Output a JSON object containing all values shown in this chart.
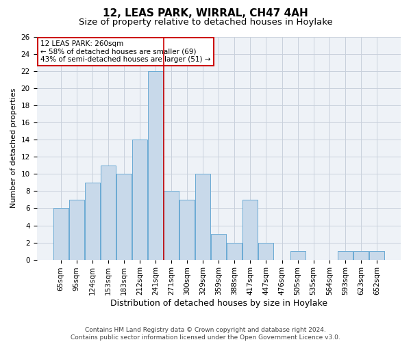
{
  "title": "12, LEAS PARK, WIRRAL, CH47 4AH",
  "subtitle": "Size of property relative to detached houses in Hoylake",
  "xlabel": "Distribution of detached houses by size in Hoylake",
  "ylabel": "Number of detached properties",
  "categories": [
    "65sqm",
    "95sqm",
    "124sqm",
    "153sqm",
    "183sqm",
    "212sqm",
    "241sqm",
    "271sqm",
    "300sqm",
    "329sqm",
    "359sqm",
    "388sqm",
    "417sqm",
    "447sqm",
    "476sqm",
    "505sqm",
    "535sqm",
    "564sqm",
    "593sqm",
    "623sqm",
    "652sqm"
  ],
  "values": [
    6,
    7,
    9,
    11,
    10,
    14,
    22,
    8,
    7,
    10,
    3,
    2,
    7,
    2,
    0,
    1,
    0,
    0,
    1,
    1,
    1
  ],
  "bar_color": "#c8d9ea",
  "bar_edge_color": "#6aaad4",
  "vline_x_index": 6.5,
  "vline_color": "#cc0000",
  "annotation_text": "12 LEAS PARK: 260sqm\n← 58% of detached houses are smaller (69)\n43% of semi-detached houses are larger (51) →",
  "annotation_box_color": "#ffffff",
  "annotation_box_edge_color": "#cc0000",
  "ylim": [
    0,
    26
  ],
  "yticks": [
    0,
    2,
    4,
    6,
    8,
    10,
    12,
    14,
    16,
    18,
    20,
    22,
    24,
    26
  ],
  "grid_color": "#c8d0dc",
  "background_color": "#eef2f7",
  "footer_line1": "Contains HM Land Registry data © Crown copyright and database right 2024.",
  "footer_line2": "Contains public sector information licensed under the Open Government Licence v3.0.",
  "title_fontsize": 11,
  "subtitle_fontsize": 9.5,
  "xlabel_fontsize": 9,
  "ylabel_fontsize": 8,
  "tick_fontsize": 7.5,
  "annotation_fontsize": 7.5,
  "footer_fontsize": 6.5
}
